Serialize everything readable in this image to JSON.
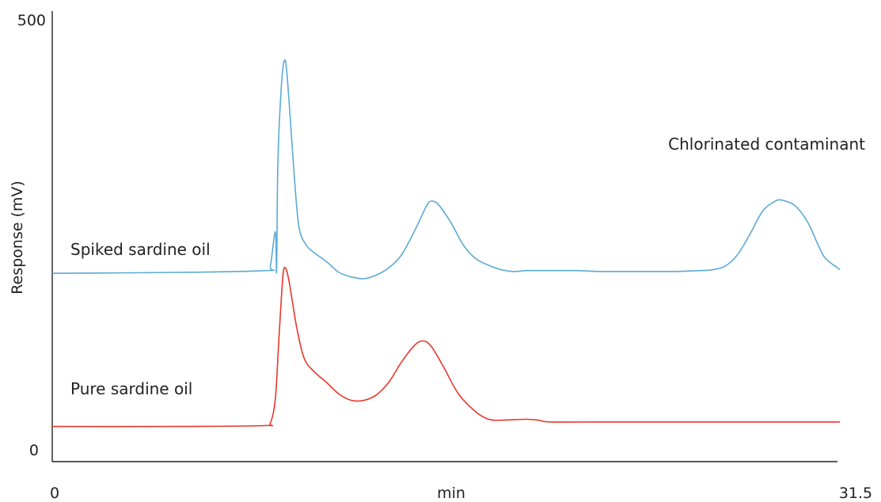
{
  "chart_data": {
    "type": "line",
    "title": "",
    "xlabel": "min",
    "ylabel": "Response (mV)",
    "xlim": [
      0,
      31.5
    ],
    "ylim": [
      0,
      500
    ],
    "x_ticks": [
      "0",
      "31.5"
    ],
    "y_ticks": [
      "500",
      "0"
    ],
    "grid": false,
    "legend": "none",
    "series": [
      {
        "name": "Spiked sardine oil",
        "color": "#5aaad6",
        "points": [
          [
            0,
            209
          ],
          [
            5,
            210
          ],
          [
            9,
            211
          ],
          [
            8.6,
            212
          ],
          [
            8.75,
            217
          ],
          [
            8.95,
            255
          ],
          [
            9.05,
            330
          ],
          [
            9.2,
            420
          ],
          [
            9.35,
            445
          ],
          [
            9.5,
            400
          ],
          [
            9.7,
            320
          ],
          [
            9.9,
            260
          ],
          [
            10.2,
            240
          ],
          [
            10.5,
            232
          ],
          [
            11,
            222
          ],
          [
            11.5,
            210
          ],
          [
            12,
            205
          ],
          [
            12.5,
            203
          ],
          [
            13,
            207
          ],
          [
            13.5,
            215
          ],
          [
            14,
            229
          ],
          [
            14.5,
            254
          ],
          [
            15,
            283
          ],
          [
            15.2,
            289
          ],
          [
            15.5,
            285
          ],
          [
            16,
            265
          ],
          [
            16.5,
            240
          ],
          [
            17,
            225
          ],
          [
            17.5,
            218
          ],
          [
            18,
            213
          ],
          [
            18.5,
            211
          ],
          [
            19,
            212
          ],
          [
            19.5,
            212
          ],
          [
            20,
            212
          ],
          [
            21,
            212
          ],
          [
            22,
            211
          ],
          [
            23,
            211
          ],
          [
            24,
            211
          ],
          [
            25,
            211
          ],
          [
            26,
            212
          ],
          [
            26.5,
            213
          ],
          [
            27,
            217
          ],
          [
            27.5,
            230
          ],
          [
            28,
            253
          ],
          [
            28.5,
            278
          ],
          [
            29,
            289
          ],
          [
            29.3,
            290
          ],
          [
            29.8,
            284
          ],
          [
            30.3,
            266
          ],
          [
            30.7,
            242
          ],
          [
            31,
            226
          ],
          [
            31.5,
            215
          ],
          [
            31.6,
            213
          ]
        ]
      },
      {
        "name": "Pure sardine oil",
        "color": "#e8372a",
        "points": [
          [
            0,
            39
          ],
          [
            5,
            39
          ],
          [
            8.5,
            40
          ],
          [
            8.75,
            43
          ],
          [
            8.95,
            70
          ],
          [
            9.1,
            140
          ],
          [
            9.25,
            205
          ],
          [
            9.35,
            215
          ],
          [
            9.5,
            200
          ],
          [
            9.8,
            150
          ],
          [
            10.1,
            115
          ],
          [
            10.5,
            100
          ],
          [
            11,
            88
          ],
          [
            11.5,
            75
          ],
          [
            12,
            68
          ],
          [
            12.5,
            68
          ],
          [
            13,
            74
          ],
          [
            13.5,
            88
          ],
          [
            14,
            110
          ],
          [
            14.5,
            128
          ],
          [
            14.85,
            134
          ],
          [
            15.2,
            128
          ],
          [
            15.7,
            105
          ],
          [
            16.3,
            75
          ],
          [
            17,
            55
          ],
          [
            17.5,
            47
          ],
          [
            18,
            46
          ],
          [
            19,
            47
          ],
          [
            19.5,
            46
          ],
          [
            20,
            44
          ],
          [
            22,
            44
          ],
          [
            24,
            44
          ],
          [
            26,
            44
          ],
          [
            28,
            44
          ],
          [
            30,
            44
          ],
          [
            31.6,
            44
          ]
        ]
      }
    ],
    "annotations": [
      {
        "key": "chlorinated",
        "text": "Chlorinated contaminant"
      },
      {
        "key": "spiked",
        "text": "Spiked sardine oil"
      },
      {
        "key": "pure",
        "text": "Pure sardine oil"
      }
    ]
  }
}
